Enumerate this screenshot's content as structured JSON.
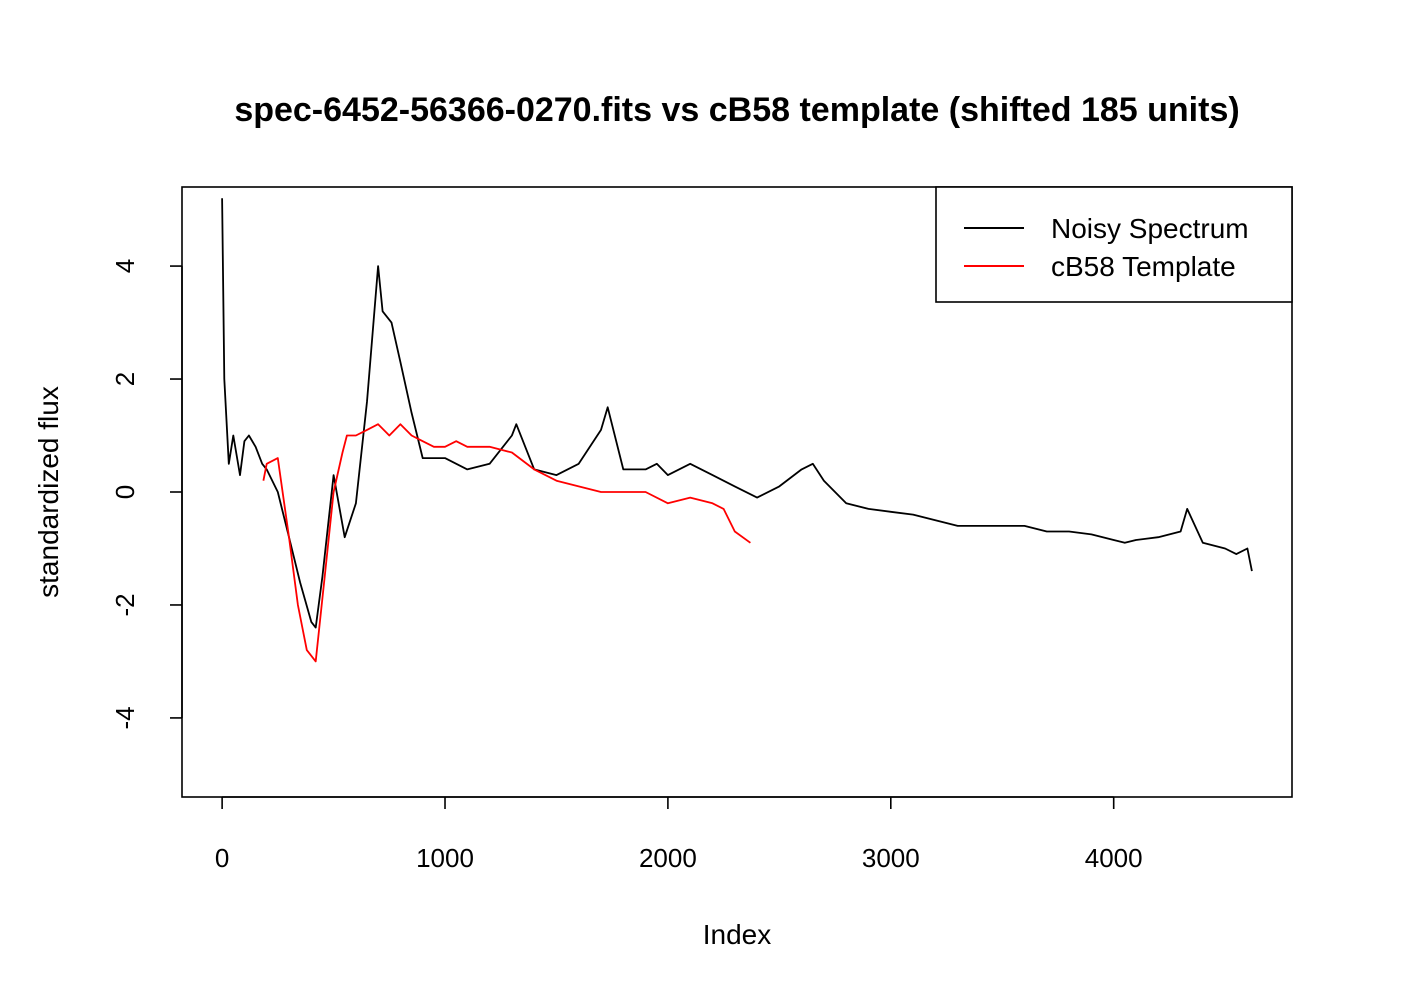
{
  "chart_data": {
    "type": "line",
    "title": "spec-6452-56366-0270.fits vs cB58 template (shifted 185 units)",
    "xlabel": "Index",
    "ylabel": "standardized flux",
    "xlim": [
      -180,
      4800
    ],
    "ylim": [
      -5.4,
      5.4
    ],
    "x_ticks": [
      0,
      1000,
      2000,
      3000,
      4000
    ],
    "x_tick_labels": [
      "0",
      "1000",
      "2000",
      "3000",
      "4000"
    ],
    "y_ticks": [
      -4,
      -2,
      0,
      2,
      4
    ],
    "y_tick_labels": [
      "-4",
      "-2",
      "0",
      "2",
      "4"
    ],
    "grid": false,
    "legend_position": "top-right",
    "series": [
      {
        "name": "Noisy Spectrum",
        "color": "#000000",
        "x": [
          0,
          10,
          30,
          50,
          80,
          100,
          120,
          150,
          180,
          200,
          250,
          300,
          350,
          400,
          420,
          450,
          500,
          550,
          600,
          650,
          700,
          720,
          760,
          800,
          850,
          900,
          1000,
          1100,
          1200,
          1300,
          1320,
          1400,
          1500,
          1600,
          1700,
          1730,
          1800,
          1900,
          1950,
          2000,
          2100,
          2200,
          2300,
          2400,
          2500,
          2600,
          2650,
          2700,
          2800,
          2900,
          3000,
          3100,
          3200,
          3300,
          3400,
          3500,
          3600,
          3700,
          3800,
          3900,
          4000,
          4050,
          4100,
          4200,
          4300,
          4330,
          4400,
          4500,
          4550,
          4600,
          4620
        ],
        "y": [
          5.2,
          2.0,
          0.5,
          1.0,
          0.3,
          0.9,
          1.0,
          0.8,
          0.5,
          0.4,
          0.0,
          -0.8,
          -1.6,
          -2.3,
          -2.4,
          -1.5,
          0.3,
          -0.8,
          -0.2,
          1.6,
          4.0,
          3.2,
          3.0,
          2.3,
          1.4,
          0.6,
          0.6,
          0.4,
          0.5,
          1.0,
          1.2,
          0.4,
          0.3,
          0.5,
          1.1,
          1.5,
          0.4,
          0.4,
          0.5,
          0.3,
          0.5,
          0.3,
          0.1,
          -0.1,
          0.1,
          0.4,
          0.5,
          0.2,
          -0.2,
          -0.3,
          -0.35,
          -0.4,
          -0.5,
          -0.6,
          -0.6,
          -0.6,
          -0.6,
          -0.7,
          -0.7,
          -0.75,
          -0.85,
          -0.9,
          -0.85,
          -0.8,
          -0.7,
          -0.3,
          -0.9,
          -1.0,
          -1.1,
          -1.0,
          -1.4
        ]
      },
      {
        "name": "cB58 Template",
        "color": "#ff0000",
        "x": [
          185,
          200,
          250,
          300,
          340,
          380,
          420,
          460,
          500,
          540,
          560,
          600,
          650,
          700,
          750,
          800,
          850,
          900,
          950,
          1000,
          1050,
          1100,
          1200,
          1300,
          1400,
          1500,
          1600,
          1700,
          1800,
          1900,
          2000,
          2100,
          2200,
          2250,
          2300,
          2370
        ],
        "y": [
          0.2,
          0.5,
          0.6,
          -0.8,
          -2.0,
          -2.8,
          -3.0,
          -1.5,
          0.0,
          0.7,
          1.0,
          1.0,
          1.1,
          1.2,
          1.0,
          1.2,
          1.0,
          0.9,
          0.8,
          0.8,
          0.9,
          0.8,
          0.8,
          0.7,
          0.4,
          0.2,
          0.1,
          0.0,
          0.0,
          0.0,
          -0.2,
          -0.1,
          -0.2,
          -0.3,
          -0.7,
          -0.9
        ]
      }
    ],
    "annotations": []
  }
}
